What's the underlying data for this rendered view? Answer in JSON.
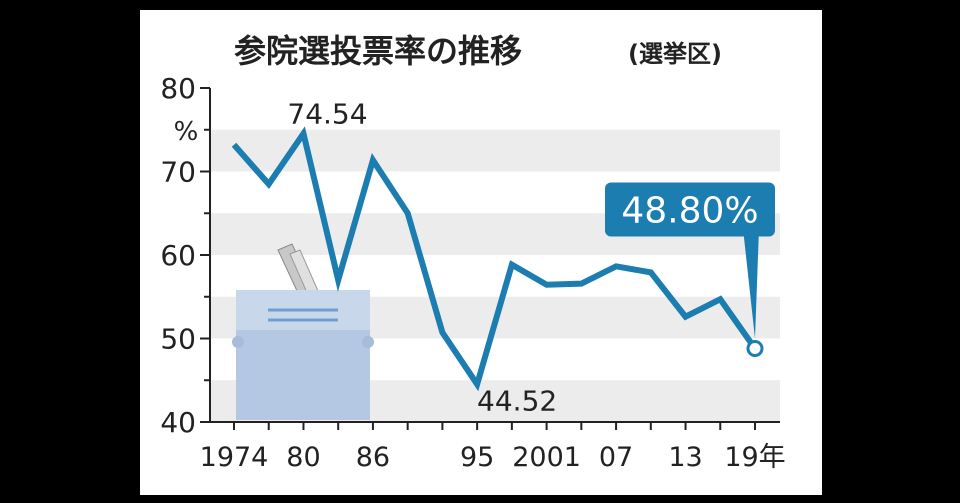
{
  "chart_data": {
    "type": "line",
    "title": "参院選投票率の推移",
    "subtitle": "(選挙区)",
    "y_unit": "%",
    "categories": [
      "1974",
      null,
      "80",
      null,
      "86",
      null,
      null,
      "95",
      null,
      "2001",
      null,
      "07",
      null,
      "13",
      null,
      "19年"
    ],
    "values": [
      73.2,
      68.49,
      74.54,
      57.0,
      71.36,
      65.02,
      50.72,
      44.52,
      58.84,
      56.44,
      56.57,
      58.64,
      57.92,
      52.61,
      54.7,
      48.8
    ],
    "value_labels": [
      null,
      null,
      "74.54",
      null,
      null,
      null,
      null,
      "44.52",
      null,
      null,
      null,
      null,
      null,
      null,
      null,
      "48.80%"
    ],
    "color": "#1b7db0",
    "ylim": [
      40,
      80
    ],
    "yticks": [
      40,
      50,
      60,
      70,
      80
    ],
    "grid": true
  }
}
